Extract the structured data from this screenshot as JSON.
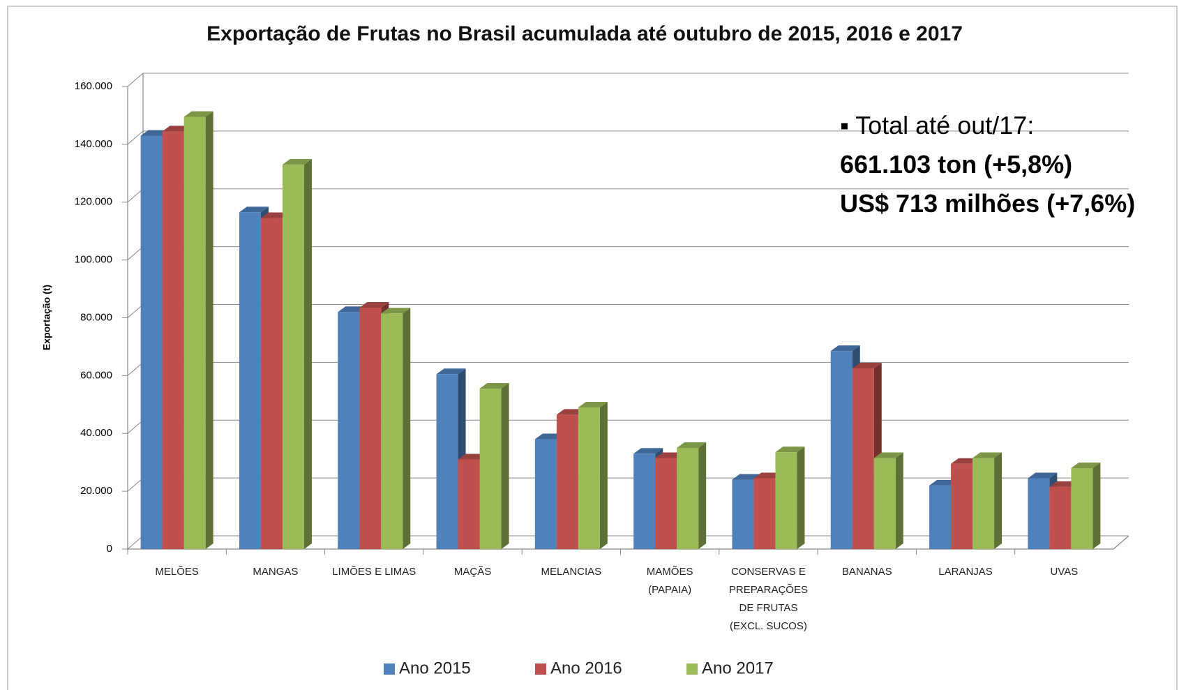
{
  "chart_data": {
    "type": "bar3d",
    "title": "Exportação de Frutas no Brasil acumulada até outubro de 2015, 2016 e 2017",
    "y_label": "Exportação (t)",
    "categories": [
      "MELÕES",
      "MANGAS",
      "LIMÕES E LIMAS",
      "MAÇÃS",
      "MELANCIAS",
      "MAMÕES (PAPAIA)",
      "CONSERVAS E PREPARAÇÕES DE FRUTAS (EXCL. SUCOS)",
      "BANANAS",
      "LARANJAS",
      "UVAS"
    ],
    "series": [
      {
        "name": "Ano 2015",
        "color": "#4f81bd",
        "values": [
          143000,
          116500,
          82000,
          60500,
          38000,
          33000,
          24000,
          68500,
          22000,
          24500
        ]
      },
      {
        "name": "Ano 2016",
        "color": "#c0504d",
        "values": [
          144500,
          114500,
          83500,
          31000,
          46500,
          31500,
          24500,
          62500,
          29500,
          21500
        ]
      },
      {
        "name": "Ano 2017",
        "color": "#9bbb59",
        "values": [
          149500,
          133000,
          81500,
          55500,
          49000,
          35000,
          33500,
          31500,
          31500,
          28000
        ]
      }
    ],
    "ylim": [
      0,
      160000
    ],
    "yticks": [
      0,
      {
        "value": 20000,
        "label": "20.000"
      },
      {
        "value": 40000,
        "label": "40.000"
      },
      {
        "value": 60000,
        "label": "60.000"
      },
      {
        "value": 80000,
        "label": "80.000"
      },
      {
        "value": 100000,
        "label": "100.000"
      },
      {
        "value": 120000,
        "label": "120.000"
      },
      {
        "value": 140000,
        "label": "140.000"
      },
      {
        "value": 160000,
        "label": "160.000"
      }
    ],
    "grid": true,
    "legend": "bottom",
    "annotations": [
      "▪ Total até out/17:",
      "661.103 ton (+5,8%)",
      "US$ 713 milhões (+7,6%)"
    ]
  }
}
